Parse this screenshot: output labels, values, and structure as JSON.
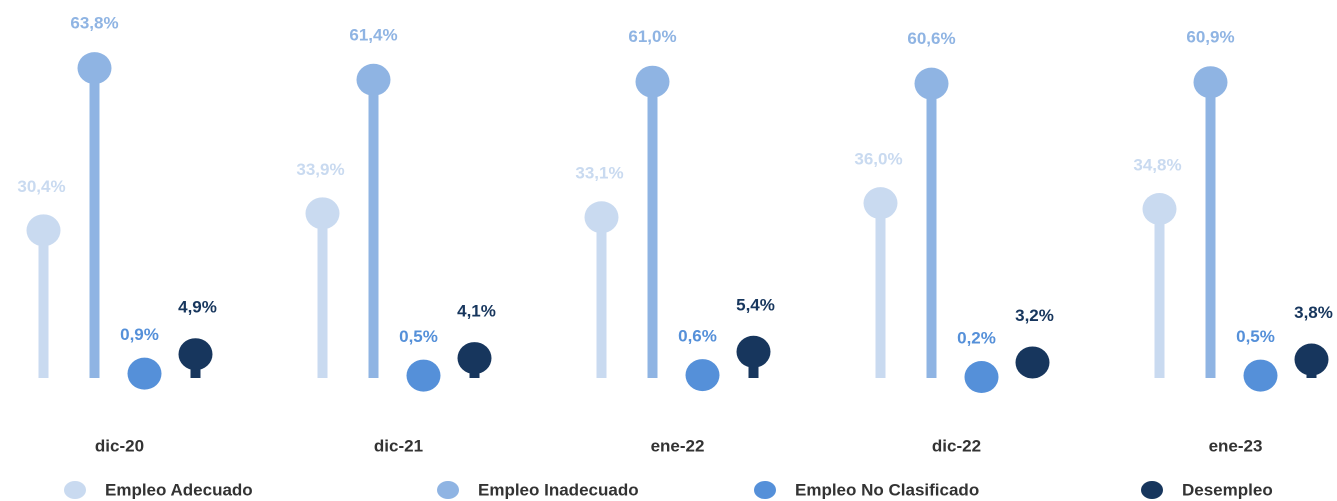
{
  "chart_data": {
    "type": "lollipop",
    "categories": [
      "dic-20",
      "dic-21",
      "ene-22",
      "dic-22",
      "ene-23"
    ],
    "ylim": [
      0,
      70
    ],
    "legend": "bottom",
    "series": [
      {
        "name": "Empleo Adecuado",
        "color": "#c9daf0",
        "values": [
          30.4,
          33.9,
          33.1,
          36.0,
          34.8
        ],
        "value_labels": [
          "30,4%",
          "33,9%",
          "33,1%",
          "36,0%",
          "34,8%"
        ]
      },
      {
        "name": "Empleo Inadecuado",
        "color": "#8fb4e3",
        "values": [
          63.8,
          61.4,
          61.0,
          60.6,
          60.9
        ],
        "value_labels": [
          "63,8%",
          "61,4%",
          "61,0%",
          "60,6%",
          "60,9%"
        ]
      },
      {
        "name": "Empleo No Clasificado",
        "color": "#5590d9",
        "values": [
          0.9,
          0.5,
          0.6,
          0.2,
          0.5
        ],
        "value_labels": [
          "0,9%",
          "0,5%",
          "0,6%",
          "0,2%",
          "0,5%"
        ]
      },
      {
        "name": "Desempleo",
        "color": "#17365d",
        "values": [
          4.9,
          4.1,
          5.4,
          3.2,
          3.8
        ],
        "value_labels": [
          "4,9%",
          "4,1%",
          "5,4%",
          "3,2%",
          "3,8%"
        ]
      }
    ]
  }
}
